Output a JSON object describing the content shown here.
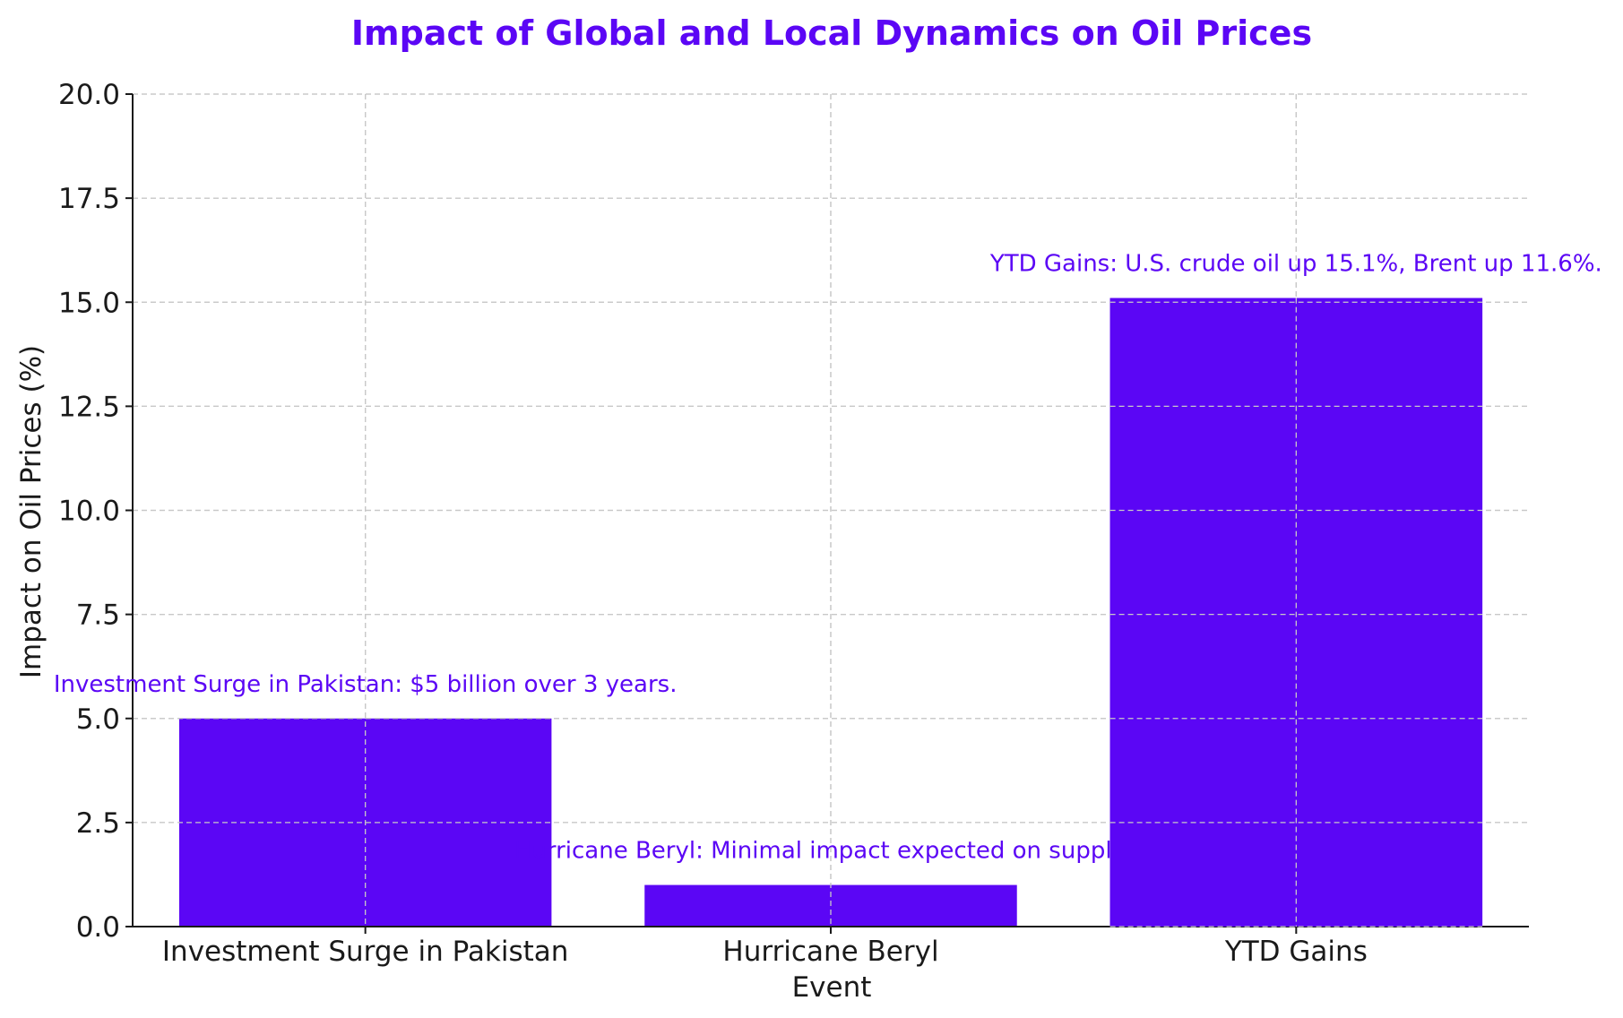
{
  "chart_data": {
    "type": "bar",
    "title": "Impact of Global and Local Dynamics on Oil Prices",
    "xlabel": "Event",
    "ylabel": "Impact on Oil Prices (%)",
    "categories": [
      "Investment Surge in Pakistan",
      "Hurricane Beryl",
      "YTD Gains"
    ],
    "values": [
      5,
      1,
      15.1
    ],
    "ylim": [
      0,
      20
    ],
    "yticks": [
      0,
      2.5,
      5,
      7.5,
      10,
      12.5,
      15,
      17.5,
      20
    ],
    "ytick_labels": [
      "0.0",
      "2.5",
      "5.0",
      "7.5",
      "10.0",
      "12.5",
      "15.0",
      "17.5",
      "20.0"
    ],
    "annotations": [
      "Investment Surge in Pakistan: $5 billion over 3 years.",
      "Hurricane Beryl: Minimal impact expected on supply a",
      "YTD Gains: U.S. crude oil up 15.1%, Brent up 11.6%."
    ],
    "grid": true,
    "bar_color": "#5b06f5",
    "title_color": "#5b06f5",
    "annotation_color": "#5b06f5"
  }
}
